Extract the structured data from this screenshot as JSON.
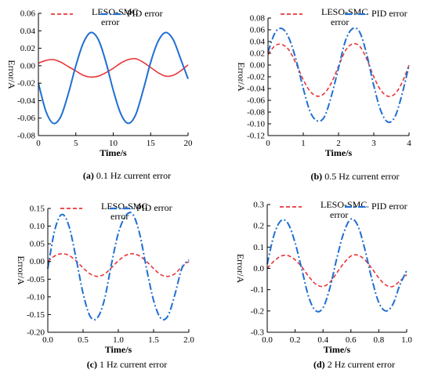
{
  "legend": {
    "leso_label_line1": "LESO-SMC",
    "leso_label_line2": "error",
    "pid_label": "PID error"
  },
  "colors": {
    "leso": "#e8363a",
    "pid": "#1f6fd1"
  },
  "chart_data": [
    {
      "type": "line",
      "caption_letter": "(a)",
      "caption_text": " 0.1 Hz current error",
      "xlabel": "Time/s",
      "ylabel": "Error/A",
      "xlim": [
        0,
        20
      ],
      "ylim": [
        -0.08,
        0.06
      ],
      "xticks": [
        0,
        5,
        10,
        15,
        20
      ],
      "yticks": [
        -0.08,
        -0.06,
        -0.04,
        -0.02,
        0.0,
        0.02,
        0.04,
        0.06
      ],
      "ytick_labels": [
        "-0.08",
        "-0.06",
        "-0.04",
        "-0.02",
        "0.00",
        "0.02",
        "0.04",
        "0.06"
      ],
      "xtick_labels": [
        "0",
        "5",
        "10",
        "15",
        "20"
      ],
      "series": [
        {
          "name": "LESO-SMC error",
          "x": [
            0,
            1,
            2,
            3,
            4,
            5,
            6,
            7,
            8,
            9,
            10,
            11,
            12,
            13,
            14,
            15,
            16,
            17,
            18,
            19,
            20
          ],
          "y": [
            0.003,
            0.006,
            0.007,
            0.004,
            -0.001,
            -0.006,
            -0.011,
            -0.013,
            -0.012,
            -0.008,
            -0.003,
            0.003,
            0.007,
            0.008,
            0.004,
            -0.002,
            -0.008,
            -0.012,
            -0.011,
            -0.006,
            0.001
          ]
        },
        {
          "name": "PID error",
          "x": [
            0,
            1,
            2,
            3,
            4,
            5,
            6,
            7,
            8,
            9,
            10,
            11,
            12,
            13,
            14,
            15,
            16,
            17,
            18,
            19,
            20
          ],
          "y": [
            -0.02,
            -0.052,
            -0.066,
            -0.058,
            -0.032,
            0.0,
            0.026,
            0.038,
            0.03,
            0.005,
            -0.028,
            -0.055,
            -0.066,
            -0.056,
            -0.028,
            0.004,
            0.028,
            0.038,
            0.03,
            0.008,
            -0.015
          ]
        }
      ]
    },
    {
      "type": "line",
      "caption_letter": "(b)",
      "caption_text": " 0.5 Hz current error",
      "xlabel": "Time/s",
      "ylabel": "Error/A",
      "xlim": [
        0,
        4
      ],
      "ylim": [
        -0.12,
        0.08
      ],
      "xticks": [
        0,
        1,
        2,
        3,
        4
      ],
      "yticks": [
        -0.12,
        -0.1,
        -0.08,
        -0.06,
        -0.04,
        -0.02,
        0.0,
        0.02,
        0.04,
        0.06,
        0.08
      ],
      "ytick_labels": [
        "-0.12",
        "-0.10",
        "-0.08",
        "-0.06",
        "-0.04",
        "-0.02",
        "0.00",
        "0.02",
        "0.04",
        "0.06",
        "0.08"
      ],
      "xtick_labels": [
        "0",
        "1",
        "2",
        "3",
        "4"
      ],
      "series": [
        {
          "name": "LESO-SMC error",
          "x": [
            0,
            0.2,
            0.4,
            0.6,
            0.8,
            1.0,
            1.2,
            1.4,
            1.6,
            1.8,
            2.0,
            2.2,
            2.4,
            2.6,
            2.8,
            3.0,
            3.2,
            3.4,
            3.6,
            3.8,
            4.0
          ],
          "y": [
            0.018,
            0.033,
            0.035,
            0.025,
            0.002,
            -0.025,
            -0.045,
            -0.053,
            -0.048,
            -0.03,
            -0.002,
            0.025,
            0.036,
            0.032,
            0.01,
            -0.02,
            -0.043,
            -0.053,
            -0.049,
            -0.03,
            0.0
          ]
        },
        {
          "name": "PID error",
          "x": [
            0,
            0.2,
            0.4,
            0.6,
            0.8,
            1.0,
            1.2,
            1.4,
            1.6,
            1.8,
            2.0,
            2.2,
            2.4,
            2.6,
            2.8,
            3.0,
            3.2,
            3.4,
            3.6,
            3.8,
            4.0
          ],
          "y": [
            0.022,
            0.055,
            0.062,
            0.045,
            0.008,
            -0.04,
            -0.08,
            -0.095,
            -0.088,
            -0.052,
            -0.005,
            0.042,
            0.062,
            0.056,
            0.018,
            -0.035,
            -0.078,
            -0.097,
            -0.088,
            -0.05,
            0.0
          ]
        }
      ]
    },
    {
      "type": "line",
      "caption_letter": "(c)",
      "caption_text": " 1 Hz current error",
      "xlabel": "Time/s",
      "ylabel": "Error/A",
      "xlim": [
        0,
        2
      ],
      "ylim": [
        -0.2,
        0.15
      ],
      "xticks": [
        0,
        0.5,
        1.0,
        1.5,
        2.0
      ],
      "yticks": [
        -0.2,
        -0.15,
        -0.1,
        -0.05,
        0.0,
        0.05,
        0.1,
        0.15
      ],
      "ytick_labels": [
        "-0.20",
        "-0.15",
        "-0.10",
        "-0.05",
        "0.00",
        "0.05",
        "0.10",
        "0.15"
      ],
      "xtick_labels": [
        "0.0",
        "0.5",
        "1.0",
        "1.5",
        "2.0"
      ],
      "series": [
        {
          "name": "LESO-SMC error",
          "x": [
            0,
            0.1,
            0.2,
            0.3,
            0.4,
            0.5,
            0.6,
            0.7,
            0.8,
            0.9,
            1.0,
            1.1,
            1.2,
            1.3,
            1.4,
            1.5,
            1.6,
            1.7,
            1.8,
            1.9,
            2.0
          ],
          "y": [
            0.0,
            0.016,
            0.022,
            0.017,
            0.002,
            -0.018,
            -0.035,
            -0.042,
            -0.036,
            -0.018,
            0.002,
            0.017,
            0.022,
            0.016,
            0.0,
            -0.02,
            -0.037,
            -0.042,
            -0.035,
            -0.015,
            0.0
          ]
        },
        {
          "name": "PID error",
          "x": [
            0,
            0.1,
            0.2,
            0.3,
            0.4,
            0.5,
            0.6,
            0.7,
            0.8,
            0.9,
            1.0,
            1.1,
            1.2,
            1.3,
            1.4,
            1.5,
            1.6,
            1.7,
            1.8,
            1.9,
            2.0
          ],
          "y": [
            -0.02,
            0.09,
            0.133,
            0.1,
            0.01,
            -0.09,
            -0.155,
            -0.16,
            -0.11,
            -0.01,
            0.08,
            0.128,
            0.135,
            0.08,
            -0.02,
            -0.11,
            -0.16,
            -0.155,
            -0.095,
            -0.02,
            0.005
          ]
        }
      ]
    },
    {
      "type": "line",
      "caption_letter": "(d)",
      "caption_text": " 2 Hz current error",
      "xlabel": "Time/s",
      "ylabel": "Error/A",
      "xlim": [
        0,
        1
      ],
      "ylim": [
        -0.3,
        0.3
      ],
      "xticks": [
        0,
        0.2,
        0.4,
        0.6,
        0.8,
        1.0
      ],
      "yticks": [
        -0.3,
        -0.2,
        -0.1,
        0.0,
        0.1,
        0.2,
        0.3
      ],
      "ytick_labels": [
        "-0.3",
        "-0.2",
        "-0.1",
        "0.0",
        "0.1",
        "0.2",
        "0.3"
      ],
      "xtick_labels": [
        "0.0",
        "0.2",
        "0.4",
        "0.6",
        "0.8",
        "1.0"
      ],
      "series": [
        {
          "name": "LESO-SMC error",
          "x": [
            0,
            0.05,
            0.1,
            0.15,
            0.2,
            0.25,
            0.3,
            0.35,
            0.4,
            0.45,
            0.5,
            0.55,
            0.6,
            0.65,
            0.7,
            0.75,
            0.8,
            0.85,
            0.9,
            0.95,
            1.0
          ],
          "y": [
            0.0,
            0.035,
            0.058,
            0.06,
            0.04,
            0.005,
            -0.04,
            -0.075,
            -0.085,
            -0.065,
            -0.02,
            0.025,
            0.058,
            0.062,
            0.04,
            0.0,
            -0.045,
            -0.078,
            -0.085,
            -0.06,
            -0.03
          ]
        },
        {
          "name": "PID error",
          "x": [
            0,
            0.05,
            0.1,
            0.15,
            0.2,
            0.25,
            0.3,
            0.35,
            0.4,
            0.45,
            0.5,
            0.55,
            0.6,
            0.65,
            0.7,
            0.75,
            0.8,
            0.85,
            0.9,
            0.95,
            1.0
          ],
          "y": [
            0.02,
            0.16,
            0.225,
            0.21,
            0.12,
            -0.01,
            -0.14,
            -0.2,
            -0.185,
            -0.09,
            0.05,
            0.17,
            0.232,
            0.2,
            0.09,
            -0.05,
            -0.16,
            -0.2,
            -0.17,
            -0.08,
            -0.01
          ]
        }
      ]
    }
  ]
}
